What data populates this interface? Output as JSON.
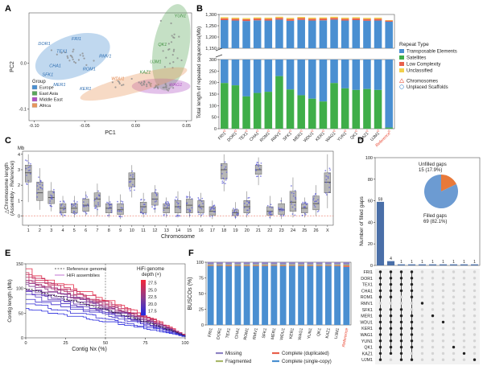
{
  "panels": {
    "A": {
      "label": "A",
      "chart_data": {
        "type": "scatter",
        "xlabel": "PC1",
        "ylabel": "PC2",
        "xlim": [
          -0.105,
          0.055
        ],
        "ylim": [
          -0.125,
          0.11
        ],
        "xticks": [
          "-0.10",
          "-0.05",
          "0.00",
          "0.05"
        ],
        "xtick_values": [
          -0.1,
          -0.05,
          0.0,
          0.05
        ],
        "yticks": [
          "-0.1",
          "0.0"
        ],
        "ytick_values": [
          -0.1,
          0.0
        ],
        "legend_title": "Group",
        "groups": [
          {
            "name": "Europe",
            "color": "#4a8fd1",
            "center": [
              -0.062,
              0.015
            ],
            "spread": [
              0.024,
              0.032
            ],
            "angle": -20
          },
          {
            "name": "East Asia",
            "color": "#5aa65a",
            "center": [
              0.035,
              0.035
            ],
            "spread": [
              0.011,
              0.068
            ],
            "angle": 10
          },
          {
            "name": "Middle East",
            "color": "#b04fc4",
            "center": [
              0.025,
              -0.05
            ],
            "spread": [
              0.018,
              0.012
            ],
            "angle": 0
          },
          {
            "name": "Africa",
            "color": "#e8955a",
            "center": [
              -0.002,
              -0.045
            ],
            "spread": [
              0.034,
              0.014
            ],
            "angle": -15
          }
        ],
        "annotations": [
          {
            "text": "DOR1",
            "x": -0.096,
            "y": 0.04,
            "color": "#2b6cb0"
          },
          {
            "text": "FRI1",
            "x": -0.063,
            "y": 0.05,
            "color": "#2b6cb0"
          },
          {
            "text": "TEX1",
            "x": -0.078,
            "y": 0.023,
            "color": "#2b6cb0"
          },
          {
            "text": "RMV1",
            "x": -0.036,
            "y": 0.013,
            "color": "#2b6cb0"
          },
          {
            "text": "ROM1",
            "x": -0.052,
            "y": -0.015,
            "color": "#2b6cb0"
          },
          {
            "text": "CHA1",
            "x": -0.085,
            "y": -0.008,
            "color": "#2b6cb0"
          },
          {
            "text": "SFK1",
            "x": -0.092,
            "y": -0.028,
            "color": "#2b6cb0"
          },
          {
            "text": "MER1",
            "x": -0.081,
            "y": -0.05,
            "color": "#2b6cb0"
          },
          {
            "text": "KER1",
            "x": -0.055,
            "y": -0.058,
            "color": "#2b6cb0"
          },
          {
            "text": "WDU1",
            "x": -0.024,
            "y": -0.036,
            "color": "#e07a3a"
          },
          {
            "text": "YUN1",
            "x": 0.038,
            "y": 0.1,
            "color": "#3f8f3f"
          },
          {
            "text": "QK1",
            "x": 0.022,
            "y": 0.038,
            "color": "#3f8f3f"
          },
          {
            "text": "UJM1",
            "x": 0.014,
            "y": 0.0,
            "color": "#3f8f3f"
          },
          {
            "text": "KAZ1",
            "x": 0.004,
            "y": -0.022,
            "color": "#3f8f3f"
          },
          {
            "text": "WAG1",
            "x": 0.033,
            "y": -0.05,
            "color": "#b04fc4"
          }
        ]
      }
    },
    "B": {
      "label": "B",
      "chart_data": {
        "type": "bar",
        "ylabel": "Total length of repeated sequences(Mb)",
        "upper_ylim": [
          1150,
          1300
        ],
        "upper_yticks": [
          1150,
          1200,
          1250,
          1300
        ],
        "upper_ytick_labels": [
          "1,150",
          "1,200",
          "1,250",
          "1,300"
        ],
        "lower_ylim": [
          0,
          300
        ],
        "lower_yticks": [
          0,
          50,
          100,
          150,
          200,
          250,
          300
        ],
        "categories": [
          "FRI1",
          "DOR1",
          "TEX1",
          "CHA1",
          "ROM1",
          "RMV1",
          "SFK1",
          "MER1",
          "WDU1",
          "KER1",
          "WAG1",
          "YUN1",
          "QK1",
          "KAZ1",
          "UJM1",
          "Reference"
        ],
        "totals": [
          1288,
          1286,
          1284,
          1287,
          1286,
          1290,
          1285,
          1289,
          1286,
          1287,
          1290,
          1286,
          1288,
          1285,
          1286,
          1275
        ],
        "satellites": [
          198,
          188,
          140,
          155,
          160,
          228,
          170,
          145,
          130,
          118,
          198,
          175,
          168,
          172,
          168,
          5
        ],
        "low_complexity": [
          8,
          8,
          8,
          8,
          8,
          8,
          8,
          8,
          8,
          8,
          8,
          8,
          8,
          8,
          8,
          5
        ],
        "unclassified": [
          5,
          5,
          5,
          5,
          5,
          5,
          5,
          5,
          5,
          5,
          5,
          5,
          5,
          5,
          5,
          2
        ],
        "legend_title": "Repeat Type",
        "series": [
          {
            "name": "Transposable Elements",
            "color": "#4a8fd1"
          },
          {
            "name": "Satellites",
            "color": "#3fae49"
          },
          {
            "name": "Low Complexity",
            "color": "#e8604c"
          },
          {
            "name": "Unclassified",
            "color": "#f2d04b"
          }
        ],
        "marker_legend": [
          {
            "name": "Chromosomes",
            "color": "#e8604c",
            "shape": "triangle"
          },
          {
            "name": "Unplaced Scaffolds",
            "color": "#4a8fd1",
            "shape": "circle"
          }
        ],
        "reference_color": "#e8432e"
      }
    },
    "C": {
      "label": "C",
      "chart_data": {
        "type": "box",
        "unit": "Mb",
        "ylabel_line1": "△Chromosome length",
        "ylabel_line2": "(Assembly - Reference)",
        "xlabel": "Chromosome",
        "ylim": [
          -0.6,
          4.2
        ],
        "yticks": [
          0,
          1,
          2,
          3,
          4
        ],
        "categories": [
          "1",
          "2",
          "3",
          "4",
          "5",
          "6",
          "7",
          "8",
          "9",
          "10",
          "11",
          "12",
          "13",
          "14",
          "15",
          "16",
          "17",
          "18",
          "19",
          "20",
          "21",
          "22",
          "23",
          "24",
          "25",
          "26",
          "X"
        ],
        "median": [
          2.8,
          1.5,
          1.2,
          0.5,
          0.5,
          0.7,
          1.1,
          0.5,
          0.4,
          2.4,
          0.6,
          1.1,
          0.5,
          0.6,
          0.7,
          0.6,
          0.3,
          3.0,
          0.2,
          0.6,
          3.0,
          0.3,
          0.4,
          0.9,
          0.5,
          0.8,
          2.2
        ],
        "q1": [
          2.2,
          1.0,
          0.8,
          0.2,
          0.2,
          0.3,
          0.6,
          0.2,
          0.1,
          1.9,
          0.2,
          0.7,
          0.2,
          0.2,
          0.2,
          0.2,
          0.05,
          2.4,
          0.02,
          0.2,
          2.7,
          0.05,
          0.1,
          0.3,
          0.2,
          0.4,
          1.5
        ],
        "q3": [
          3.3,
          2.2,
          1.6,
          0.8,
          0.8,
          1.1,
          1.5,
          0.8,
          0.8,
          2.8,
          0.9,
          1.5,
          0.8,
          1.0,
          1.1,
          1.0,
          0.6,
          3.4,
          0.4,
          1.0,
          3.3,
          0.6,
          0.8,
          1.6,
          0.8,
          1.3,
          2.8
        ],
        "whisker_low": [
          0.9,
          0.4,
          0.3,
          -0.1,
          -0.1,
          0.0,
          0.0,
          -0.1,
          -0.2,
          1.2,
          -0.1,
          0.2,
          -0.1,
          -0.1,
          -0.1,
          -0.1,
          -0.2,
          1.6,
          -0.2,
          -0.1,
          2.0,
          -0.2,
          -0.2,
          -0.1,
          -0.1,
          0.0,
          0.5
        ],
        "whisker_high": [
          4.0,
          3.1,
          2.2,
          1.3,
          1.3,
          1.6,
          2.1,
          1.3,
          1.4,
          3.3,
          1.5,
          2.0,
          1.2,
          1.6,
          1.6,
          1.5,
          1.0,
          4.0,
          0.9,
          1.6,
          3.8,
          1.3,
          1.2,
          2.5,
          1.2,
          2.0,
          4.0
        ],
        "box_color": "#b7b7b7",
        "point_color": "#5a5ad6",
        "zero_line_color": "#e8604c"
      }
    },
    "D": {
      "label": "D",
      "chart_data": {
        "type": "upset",
        "ylabel": "Number of filled gaps",
        "ylim": [
          0,
          100
        ],
        "yticks": [
          0,
          20,
          40,
          60,
          80,
          100
        ],
        "bars": [
          59,
          4,
          1,
          1,
          1,
          1,
          1,
          1,
          1,
          1
        ],
        "bar_color": "#4a6fa8",
        "sets": [
          "FRI1",
          "DOR1",
          "TEX1",
          "CHA1",
          "ROM1",
          "RMV1",
          "SFK1",
          "MER1",
          "WDU1",
          "KER1",
          "WAG1",
          "YUN1",
          "QK1",
          "KAZ1",
          "UJM1"
        ],
        "membership": [
          [
            1,
            1,
            1,
            1,
            1,
            0,
            1,
            1,
            1,
            1,
            1,
            1,
            1,
            1,
            1
          ],
          [
            1,
            1,
            1,
            1,
            1,
            0,
            1,
            1,
            1,
            1,
            1,
            1,
            1,
            1,
            0
          ],
          [
            1,
            1,
            1,
            1,
            0,
            0,
            1,
            1,
            1,
            1,
            1,
            1,
            1,
            1,
            1
          ],
          [
            1,
            1,
            1,
            1,
            1,
            0,
            0,
            1,
            1,
            1,
            1,
            1,
            1,
            0,
            1
          ],
          [
            0,
            0,
            0,
            0,
            0,
            1,
            0,
            0,
            0,
            0,
            0,
            0,
            0,
            0,
            0
          ],
          [
            0,
            0,
            0,
            0,
            0,
            0,
            0,
            1,
            0,
            0,
            0,
            0,
            0,
            0,
            0
          ],
          [
            0,
            0,
            0,
            0,
            0,
            0,
            0,
            0,
            1,
            0,
            0,
            0,
            0,
            0,
            0
          ],
          [
            0,
            0,
            0,
            0,
            0,
            0,
            0,
            0,
            0,
            0,
            0,
            0,
            1,
            0,
            0
          ],
          [
            0,
            0,
            0,
            0,
            0,
            0,
            0,
            0,
            0,
            0,
            0,
            0,
            0,
            1,
            0
          ],
          [
            0,
            0,
            0,
            0,
            0,
            0,
            0,
            0,
            0,
            0,
            0,
            0,
            0,
            0,
            1
          ]
        ],
        "pie": [
          {
            "name": "Unfilled gaps",
            "label_line2": "15 (17.9%)",
            "value": 15,
            "color": "#e8793a"
          },
          {
            "name": "Filled gaps",
            "label_line2": "69 (82.1%)",
            "value": 69,
            "color": "#6c9bd2"
          }
        ]
      }
    },
    "E": {
      "label": "E",
      "chart_data": {
        "type": "line",
        "xlabel": "Contig Nx (%)",
        "ylabel": "Contig length (Mb)",
        "xlim": [
          0,
          100
        ],
        "ylim": [
          0,
          150
        ],
        "xticks": [
          0,
          25,
          50,
          75,
          100
        ],
        "yticks": [
          0,
          50,
          100,
          150
        ],
        "vline_x": 50,
        "legend": [
          {
            "name": "Reference genome",
            "style": "dashed"
          },
          {
            "name": "HiFi assemblies",
            "style": "solid"
          }
        ],
        "colorbar_title_line1": "HiFi genome",
        "colorbar_title_line2": "depth (×)",
        "colorbar_ticks": [
          "27.5",
          "25.0",
          "22.5",
          "20.0",
          "17.5"
        ],
        "colorbar_range": [
          16,
          28.5
        ],
        "assembly_depths": [
          27.8,
          26.5,
          25.9,
          25.2,
          24.3,
          23.6,
          22.8,
          21.9,
          21.0,
          20.2,
          19.4,
          18.6,
          17.9,
          17.2,
          16.6
        ],
        "assembly_start_lengths": [
          140,
          132,
          128,
          124,
          120,
          116,
          112,
          108,
          104,
          98,
          94,
          88,
          82,
          70,
          60
        ],
        "reference_start_length": 100
      }
    },
    "F": {
      "label": "F",
      "chart_data": {
        "type": "bar",
        "ylabel": "BUSCOs (%)",
        "ylim": [
          0,
          100
        ],
        "yticks": [
          0,
          25,
          50,
          75,
          100
        ],
        "categories": [
          "FRI1",
          "DOR1",
          "TEX1",
          "CHA1",
          "ROM1",
          "RMV1",
          "SFK1",
          "MER1",
          "WDU1",
          "KER1",
          "WAG1",
          "YUN1",
          "QK1",
          "KAZ1",
          "UJM1",
          "Reference"
        ],
        "single_copy": [
          94.0,
          94.2,
          93.8,
          94.1,
          94.0,
          93.9,
          94.0,
          94.2,
          93.8,
          94.1,
          94.0,
          93.9,
          94.0,
          94.1,
          93.9,
          92.5
        ],
        "duplicated": [
          1.0,
          1.0,
          1.1,
          1.0,
          1.0,
          1.1,
          1.0,
          1.0,
          1.1,
          1.0,
          1.0,
          1.1,
          1.0,
          1.0,
          1.1,
          2.2
        ],
        "fragmented": [
          1.5,
          1.4,
          1.5,
          1.5,
          1.5,
          1.5,
          1.5,
          1.4,
          1.5,
          1.5,
          1.5,
          1.5,
          1.5,
          1.4,
          1.5,
          1.6
        ],
        "missing": [
          3.5,
          3.4,
          3.6,
          3.4,
          3.5,
          3.5,
          3.5,
          3.4,
          3.6,
          3.4,
          3.5,
          3.5,
          3.5,
          3.5,
          3.5,
          3.7
        ],
        "series": [
          {
            "name": "Missing",
            "color": "#8e83c4"
          },
          {
            "name": "Complete (duplicated)",
            "color": "#e8604c"
          },
          {
            "name": "Fragmented",
            "color": "#a9b86a"
          },
          {
            "name": "Complete (single-copy)",
            "color": "#4a8fd1"
          }
        ],
        "reference_color": "#e8432e"
      }
    }
  }
}
